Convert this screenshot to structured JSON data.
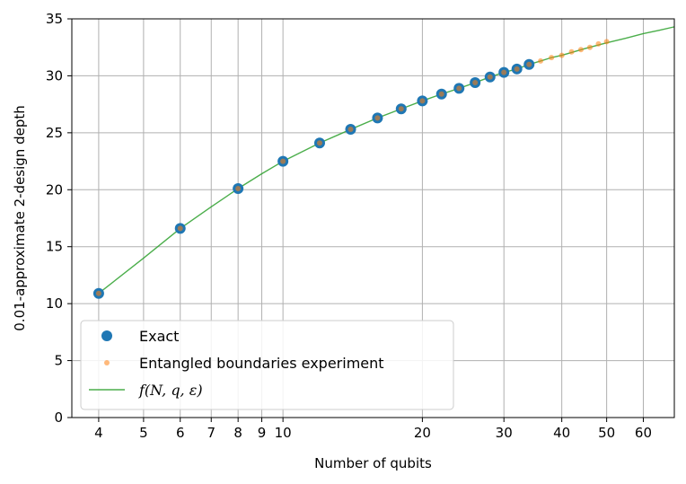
{
  "chart_data": {
    "type": "scatter",
    "xlabel": "Number of qubits",
    "ylabel": "0.01-approximate 2-design depth",
    "xscale": "log",
    "xlim": [
      3.5,
      70
    ],
    "ylim": [
      0,
      35
    ],
    "xticks": [
      4,
      5,
      6,
      7,
      8,
      9,
      10,
      20,
      30,
      40,
      50,
      60
    ],
    "xtick_labels": [
      "4",
      "5",
      "6",
      "7",
      "8",
      "9",
      "10",
      "20",
      "30",
      "40",
      "50",
      "60"
    ],
    "yticks": [
      0,
      5,
      10,
      15,
      20,
      25,
      30,
      35
    ],
    "ytick_labels": [
      "0",
      "5",
      "10",
      "15",
      "20",
      "25",
      "30",
      "35"
    ],
    "grid": true,
    "legend_position": "lower-left",
    "series": [
      {
        "name": "Exact",
        "kind": "marker",
        "color": "#1f77b4",
        "x": [
          4,
          6,
          8,
          10,
          12,
          14,
          16,
          18,
          20,
          22,
          24,
          26,
          28,
          30,
          32,
          34
        ],
        "y": [
          10.9,
          16.6,
          20.1,
          22.5,
          24.1,
          25.3,
          26.3,
          27.1,
          27.8,
          28.4,
          28.9,
          29.4,
          29.9,
          30.3,
          30.6,
          31.0
        ]
      },
      {
        "name": "Entangled boundaries experiment",
        "kind": "marker",
        "color": "#ff7f0e",
        "x": [
          4,
          6,
          8,
          10,
          12,
          14,
          16,
          18,
          20,
          22,
          24,
          26,
          28,
          30,
          32,
          34,
          36,
          38,
          40,
          42,
          44,
          46,
          48,
          50
        ],
        "y": [
          10.9,
          16.6,
          20.1,
          22.5,
          24.1,
          25.3,
          26.3,
          27.1,
          27.8,
          28.4,
          28.9,
          29.4,
          29.9,
          30.3,
          30.6,
          31.0,
          31.3,
          31.6,
          31.8,
          32.1,
          32.3,
          32.5,
          32.8,
          33.0
        ]
      },
      {
        "name_prefix": "f(N, q, ",
        "name_symbol": "ε",
        "name_suffix": ")",
        "kind": "line",
        "color": "#2ca02c",
        "x": [
          4,
          5,
          6,
          7,
          8,
          9,
          10,
          12,
          14,
          16,
          18,
          20,
          22,
          24,
          26,
          28,
          30,
          32,
          34,
          36,
          38,
          40,
          45,
          50,
          55,
          60,
          65,
          70
        ],
        "y": [
          10.9,
          14.0,
          16.6,
          18.5,
          20.1,
          21.4,
          22.5,
          24.1,
          25.3,
          26.3,
          27.1,
          27.8,
          28.4,
          28.9,
          29.4,
          29.9,
          30.3,
          30.6,
          31.0,
          31.3,
          31.6,
          31.8,
          32.4,
          32.9,
          33.3,
          33.7,
          34.0,
          34.3
        ]
      }
    ]
  }
}
